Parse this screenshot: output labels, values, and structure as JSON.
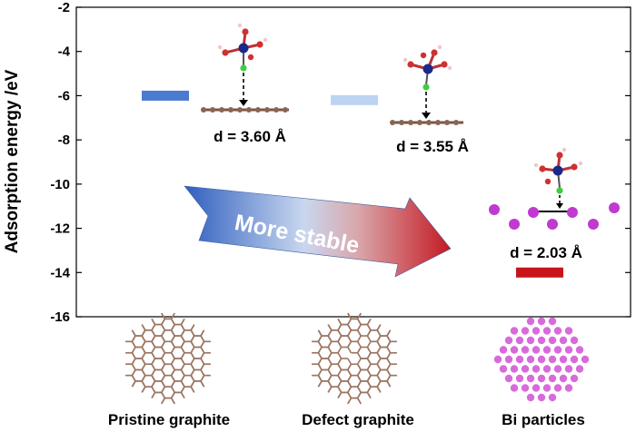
{
  "chart_data": {
    "type": "bar",
    "ylabel": "Adsorption energy /eV",
    "ylim": [
      -16,
      -2
    ],
    "yticks": [
      -2,
      -4,
      -6,
      -8,
      -10,
      -12,
      -14,
      -16
    ],
    "categories": [
      "Pristine graphite",
      "Defect graphite",
      "Bi particles"
    ],
    "values": [
      -6.0,
      -6.2,
      -14.0
    ],
    "colors": [
      "#4a7bd0",
      "#bcd3f2",
      "#c8141a"
    ],
    "distances": [
      "d = 3.60 Å",
      "d = 3.55 Å",
      "d = 2.03 Å"
    ],
    "annotation": "More stable",
    "substrate_icons": [
      "graphite-lattice",
      "defect-lattice",
      "bi-particle-array"
    ]
  }
}
